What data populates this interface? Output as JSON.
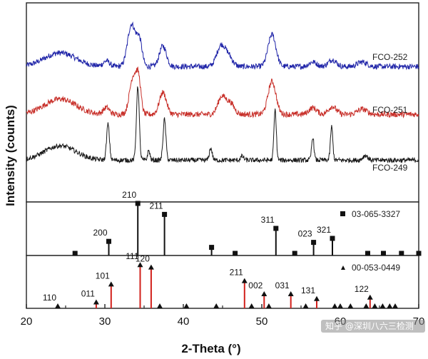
{
  "chart_data": {
    "type": "line",
    "title": "",
    "xlabel": "2-Theta (°)",
    "ylabel": "Intensity (counts)",
    "xlim": [
      20,
      70
    ],
    "xticks": [
      "20",
      "30",
      "40",
      "50",
      "60",
      "70"
    ],
    "grid": false,
    "series": [
      {
        "name": "FCO-252",
        "color": "#1f24a8",
        "baseline": 0.68,
        "scale": 0.23,
        "noise": 0.012,
        "humps": [
          [
            24.3,
            0.3,
            2.0
          ],
          [
            30.2,
            0.12,
            0.4
          ],
          [
            33.4,
            0.92,
            0.5
          ],
          [
            34.4,
            0.55,
            0.35
          ],
          [
            37.4,
            0.45,
            0.45
          ],
          [
            44.8,
            0.45,
            0.55
          ],
          [
            45.8,
            0.2,
            0.5
          ],
          [
            51.3,
            0.7,
            0.5
          ],
          [
            56.5,
            0.1,
            0.5
          ],
          [
            59.0,
            0.15,
            0.5
          ],
          [
            62.8,
            0.1,
            0.6
          ]
        ]
      },
      {
        "name": "FCO-251",
        "color": "#c8302a",
        "baseline": 0.44,
        "scale": 0.22,
        "noise": 0.013,
        "humps": [
          [
            24.3,
            0.35,
            2.0
          ],
          [
            30.2,
            0.15,
            0.4
          ],
          [
            33.6,
            0.85,
            0.45
          ],
          [
            34.3,
            0.7,
            0.3
          ],
          [
            37.4,
            0.5,
            0.45
          ],
          [
            44.9,
            0.4,
            0.5
          ],
          [
            46.0,
            0.25,
            0.5
          ],
          [
            51.3,
            0.75,
            0.5
          ],
          [
            56.5,
            0.15,
            0.5
          ],
          [
            59.0,
            0.18,
            0.5
          ],
          [
            62.8,
            0.12,
            0.6
          ]
        ]
      },
      {
        "name": "FCO-249",
        "color": "#1a1a1a",
        "baseline": 0.21,
        "scale": 0.24,
        "noise": 0.01,
        "humps": [
          [
            24.3,
            0.3,
            2.0
          ],
          [
            30.4,
            0.75,
            0.18
          ],
          [
            34.2,
            1.55,
            0.18
          ],
          [
            35.6,
            0.2,
            0.15
          ],
          [
            37.6,
            0.85,
            0.18
          ],
          [
            43.5,
            0.25,
            0.18
          ],
          [
            47.5,
            0.08,
            0.2
          ],
          [
            51.7,
            1.05,
            0.15
          ],
          [
            56.5,
            0.48,
            0.15
          ],
          [
            58.9,
            0.7,
            0.15
          ],
          [
            63.2,
            0.1,
            0.3
          ]
        ]
      }
    ],
    "reference_patterns": [
      {
        "name": "03-065-3327",
        "marker": "square",
        "line_color": "#111111",
        "peaks": [
          {
            "x": 26.2,
            "h": 0.0,
            "label": ""
          },
          {
            "x": 30.5,
            "h": 0.24,
            "label": "200"
          },
          {
            "x": 34.2,
            "h": 1.0,
            "label": "210"
          },
          {
            "x": 37.6,
            "h": 0.78,
            "label": "211"
          },
          {
            "x": 43.6,
            "h": 0.12,
            "label": ""
          },
          {
            "x": 46.6,
            "h": 0.0,
            "label": ""
          },
          {
            "x": 51.8,
            "h": 0.5,
            "label": "311"
          },
          {
            "x": 54.2,
            "h": 0.0,
            "label": ""
          },
          {
            "x": 56.6,
            "h": 0.22,
            "label": "023"
          },
          {
            "x": 59.0,
            "h": 0.3,
            "label": "321"
          },
          {
            "x": 63.5,
            "h": 0.0,
            "label": ""
          },
          {
            "x": 65.5,
            "h": 0.0,
            "label": ""
          },
          {
            "x": 67.8,
            "h": 0.0,
            "label": ""
          },
          {
            "x": 70.0,
            "h": 0.0,
            "label": ""
          }
        ]
      },
      {
        "name": "00-053-0449",
        "marker": "triangle",
        "line_color": "#d2201b",
        "peaks": [
          {
            "x": 24.0,
            "h": 0.0,
            "label": "110"
          },
          {
            "x": 28.9,
            "h": 0.08,
            "label": "011"
          },
          {
            "x": 30.8,
            "h": 0.45,
            "label": "101"
          },
          {
            "x": 34.5,
            "h": 0.85,
            "label": "111"
          },
          {
            "x": 35.9,
            "h": 0.8,
            "label": "120"
          },
          {
            "x": 37.0,
            "h": 0.0,
            "label": ""
          },
          {
            "x": 40.4,
            "h": 0.0,
            "label": ""
          },
          {
            "x": 44.2,
            "h": 0.0,
            "label": ""
          },
          {
            "x": 47.8,
            "h": 0.52,
            "label": "211"
          },
          {
            "x": 48.7,
            "h": 0.0,
            "label": ""
          },
          {
            "x": 50.3,
            "h": 0.25,
            "label": "002"
          },
          {
            "x": 50.9,
            "h": 0.0,
            "label": ""
          },
          {
            "x": 53.7,
            "h": 0.25,
            "label": "031"
          },
          {
            "x": 55.6,
            "h": 0.0,
            "label": ""
          },
          {
            "x": 57.0,
            "h": 0.15,
            "label": "131"
          },
          {
            "x": 59.3,
            "h": 0.0,
            "label": ""
          },
          {
            "x": 60.0,
            "h": 0.0,
            "label": ""
          },
          {
            "x": 61.3,
            "h": 0.0,
            "label": ""
          },
          {
            "x": 63.3,
            "h": 0.0,
            "label": ""
          },
          {
            "x": 63.8,
            "h": 0.18,
            "label": "122"
          },
          {
            "x": 64.4,
            "h": 0.0,
            "label": ""
          },
          {
            "x": 65.4,
            "h": 0.0,
            "label": ""
          },
          {
            "x": 66.3,
            "h": 0.0,
            "label": ""
          },
          {
            "x": 67.0,
            "h": 0.0,
            "label": ""
          }
        ]
      }
    ]
  },
  "watermark": {
    "text": "知乎 @深圳八六三检测"
  }
}
